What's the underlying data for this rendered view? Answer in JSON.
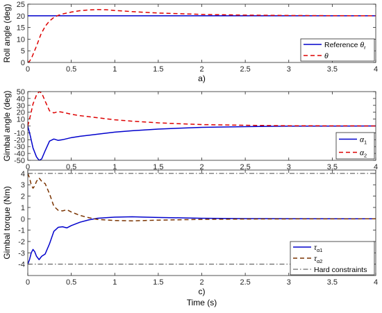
{
  "chart_data": [
    {
      "type": "line",
      "panel_label": "a)",
      "ylabel": "Roll angle (deg)",
      "xlabel": "",
      "xlim": [
        0,
        4
      ],
      "ylim": [
        0,
        25
      ],
      "xticks": [
        0,
        0.5,
        1,
        1.5,
        2,
        2.5,
        3,
        3.5,
        4
      ],
      "xtick_labels": [
        "0",
        "0.5",
        "1",
        "1.5",
        "2",
        "2.5",
        "3",
        "3.5",
        "4"
      ],
      "yticks": [
        0,
        5,
        10,
        15,
        20,
        25
      ],
      "ytick_labels": [
        "0",
        "5",
        "10",
        "15",
        "20",
        "25"
      ],
      "legend_position": "bottom-right",
      "series": [
        {
          "name": "Reference θ",
          "name_sub": "r",
          "color": "#0000cc",
          "style": "solid",
          "x": [
            0,
            4
          ],
          "y": [
            20,
            20
          ]
        },
        {
          "name": "θ",
          "name_sub": "",
          "color": "#dd0000",
          "style": "dashed",
          "x": [
            0,
            0.02,
            0.05,
            0.1,
            0.15,
            0.2,
            0.25,
            0.3,
            0.35,
            0.4,
            0.5,
            0.6,
            0.7,
            0.8,
            0.9,
            1.0,
            1.2,
            1.5,
            2.0,
            2.5,
            3.0,
            3.5,
            4.0
          ],
          "y": [
            0,
            0.5,
            2.5,
            7,
            12,
            15.5,
            17.8,
            19.3,
            20.2,
            20.8,
            21.6,
            22.2,
            22.5,
            22.7,
            22.6,
            22.3,
            21.8,
            21.2,
            20.6,
            20.3,
            20.15,
            20.05,
            20.0
          ]
        }
      ]
    },
    {
      "type": "line",
      "panel_label": "b)",
      "ylabel": "Gimbal angle (deg)",
      "xlabel": "",
      "xlim": [
        0,
        4
      ],
      "ylim": [
        -50,
        50
      ],
      "xticks": [
        0,
        0.5,
        1,
        1.5,
        2,
        2.5,
        3,
        3.5,
        4
      ],
      "xtick_labels": [
        "0",
        "0.5",
        "1",
        "1.5",
        "2",
        "2.5",
        "3",
        "3.5",
        "4"
      ],
      "yticks": [
        -50,
        -40,
        -30,
        -20,
        -10,
        0,
        10,
        20,
        30,
        40,
        50
      ],
      "ytick_labels": [
        "-50",
        "-40",
        "-30",
        "-20",
        "-10",
        "0",
        "10",
        "20",
        "30",
        "40",
        "50"
      ],
      "legend_position": "bottom-right",
      "series": [
        {
          "name": "α",
          "name_sub": "1",
          "color": "#0000cc",
          "style": "solid",
          "x": [
            0,
            0.03,
            0.06,
            0.1,
            0.13,
            0.16,
            0.2,
            0.25,
            0.3,
            0.35,
            0.4,
            0.5,
            0.6,
            0.8,
            1.0,
            1.2,
            1.5,
            2.0,
            2.5,
            3.0,
            4.0
          ],
          "y": [
            0,
            -15,
            -32,
            -45,
            -50,
            -48,
            -36,
            -22,
            -19,
            -21,
            -20,
            -17,
            -15,
            -12,
            -9,
            -7,
            -4.5,
            -2,
            -1,
            -0.3,
            0
          ]
        },
        {
          "name": "α",
          "name_sub": "2",
          "color": "#dd0000",
          "style": "dashed",
          "x": [
            0,
            0.03,
            0.06,
            0.1,
            0.13,
            0.16,
            0.2,
            0.25,
            0.3,
            0.35,
            0.4,
            0.5,
            0.6,
            0.8,
            1.0,
            1.2,
            1.5,
            2.0,
            2.5,
            3.0,
            4.0
          ],
          "y": [
            0,
            15,
            32,
            45,
            50,
            48,
            36,
            22,
            19,
            21,
            20,
            17,
            15,
            12,
            9,
            7,
            4.5,
            2,
            1,
            0.3,
            0
          ]
        }
      ]
    },
    {
      "type": "line",
      "panel_label": "c)",
      "ylabel": "Gimbal torque (Nm)",
      "xlabel": "Time (s)",
      "xlim": [
        0,
        4
      ],
      "ylim": [
        -5,
        4.3
      ],
      "xticks": [
        0,
        0.5,
        1,
        1.5,
        2,
        2.5,
        3,
        3.5,
        4
      ],
      "xtick_labels": [
        "0",
        "0.5",
        "1",
        "1.5",
        "2",
        "2.5",
        "3",
        "3.5",
        "4"
      ],
      "yticks": [
        -4,
        -3,
        -2,
        -1,
        0,
        1,
        2,
        3,
        4
      ],
      "ytick_labels": [
        "-4",
        "-3",
        "-2",
        "-1",
        "0",
        "1",
        "2",
        "3",
        "4"
      ],
      "legend_position": "bottom-right",
      "series": [
        {
          "name": "τ",
          "name_sub": "α1",
          "color": "#0000cc",
          "style": "solid",
          "x": [
            0,
            0.02,
            0.04,
            0.06,
            0.08,
            0.1,
            0.13,
            0.16,
            0.2,
            0.25,
            0.3,
            0.35,
            0.4,
            0.45,
            0.5,
            0.6,
            0.7,
            0.8,
            1.0,
            1.2,
            1.5,
            2.0,
            2.5,
            3.0,
            4.0
          ],
          "y": [
            -4,
            -3.6,
            -3.0,
            -2.7,
            -2.9,
            -3.3,
            -3.6,
            -3.3,
            -3.1,
            -2.2,
            -1.1,
            -0.75,
            -0.7,
            -0.8,
            -0.6,
            -0.3,
            -0.1,
            0.05,
            0.15,
            0.18,
            0.12,
            0.05,
            0.02,
            0.01,
            0
          ]
        },
        {
          "name": "τ",
          "name_sub": "α2",
          "color": "#7a3300",
          "style": "dashed",
          "x": [
            0,
            0.02,
            0.04,
            0.06,
            0.08,
            0.1,
            0.13,
            0.16,
            0.2,
            0.25,
            0.3,
            0.35,
            0.4,
            0.45,
            0.5,
            0.6,
            0.7,
            0.8,
            1.0,
            1.2,
            1.5,
            2.0,
            2.5,
            3.0,
            4.0
          ],
          "y": [
            4,
            3.6,
            3.0,
            2.7,
            2.9,
            3.3,
            3.6,
            3.3,
            3.1,
            2.2,
            1.1,
            0.75,
            0.7,
            0.8,
            0.6,
            0.3,
            0.1,
            -0.05,
            -0.15,
            -0.18,
            -0.12,
            -0.05,
            -0.02,
            -0.01,
            0
          ]
        },
        {
          "name": "Hard constraints",
          "name_sub": "",
          "color": "#444444",
          "style": "dashdot",
          "segments": [
            {
              "x": [
                0,
                4
              ],
              "y": [
                4,
                4
              ]
            },
            {
              "x": [
                0,
                4
              ],
              "y": [
                -4,
                -4
              ]
            }
          ]
        }
      ]
    }
  ]
}
